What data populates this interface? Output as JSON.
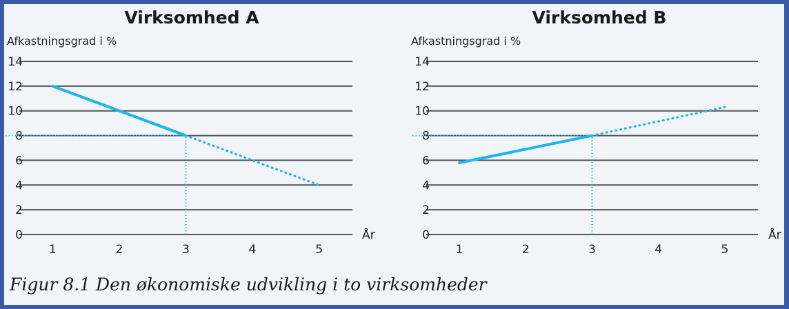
{
  "caption": "Figur 8.1 Den økonomiske udvikling i to virksomheder",
  "colors": {
    "grid": "#555555",
    "series": "#1fb4ea",
    "frame": "#3a59a8",
    "panel": "#f1f5f9"
  },
  "chart_data": [
    {
      "type": "line",
      "title": "Virksomhed A",
      "ylabel": "Afkastningsgrad i %",
      "xlabel": "År",
      "ylim": [
        0,
        14
      ],
      "yticks": [
        0,
        2,
        4,
        6,
        8,
        10,
        12,
        14
      ],
      "xlim": [
        0.5,
        5.5
      ],
      "xticks": [
        1,
        2,
        3,
        4,
        5
      ],
      "grid": true,
      "series": [
        {
          "style": "solid",
          "x": [
            1,
            3
          ],
          "y": [
            12,
            8
          ]
        },
        {
          "style": "dotted",
          "x": [
            3,
            5
          ],
          "y": [
            8,
            4
          ]
        }
      ],
      "reference_lines": [
        {
          "type": "horizontal",
          "y": 8,
          "x_from": 0.5,
          "x_to": 3
        },
        {
          "type": "vertical",
          "x": 3,
          "y_from": 0,
          "y_to": 8
        }
      ]
    },
    {
      "type": "line",
      "title": "Virksomhed B",
      "ylabel": "Afkastningsgrad i %",
      "xlabel": "År",
      "ylim": [
        0,
        14
      ],
      "yticks": [
        0,
        2,
        4,
        6,
        8,
        10,
        12,
        14
      ],
      "xlim": [
        0.5,
        5.5
      ],
      "xticks": [
        1,
        2,
        3,
        4,
        5
      ],
      "grid": true,
      "series": [
        {
          "style": "solid",
          "x": [
            1,
            3
          ],
          "y": [
            5.8,
            8
          ]
        },
        {
          "style": "dotted",
          "x": [
            3,
            5
          ],
          "y": [
            8,
            10.3
          ]
        }
      ],
      "reference_lines": [
        {
          "type": "horizontal",
          "y": 8,
          "x_from": 0.5,
          "x_to": 3
        },
        {
          "type": "vertical",
          "x": 3,
          "y_from": 0,
          "y_to": 8
        }
      ]
    }
  ]
}
